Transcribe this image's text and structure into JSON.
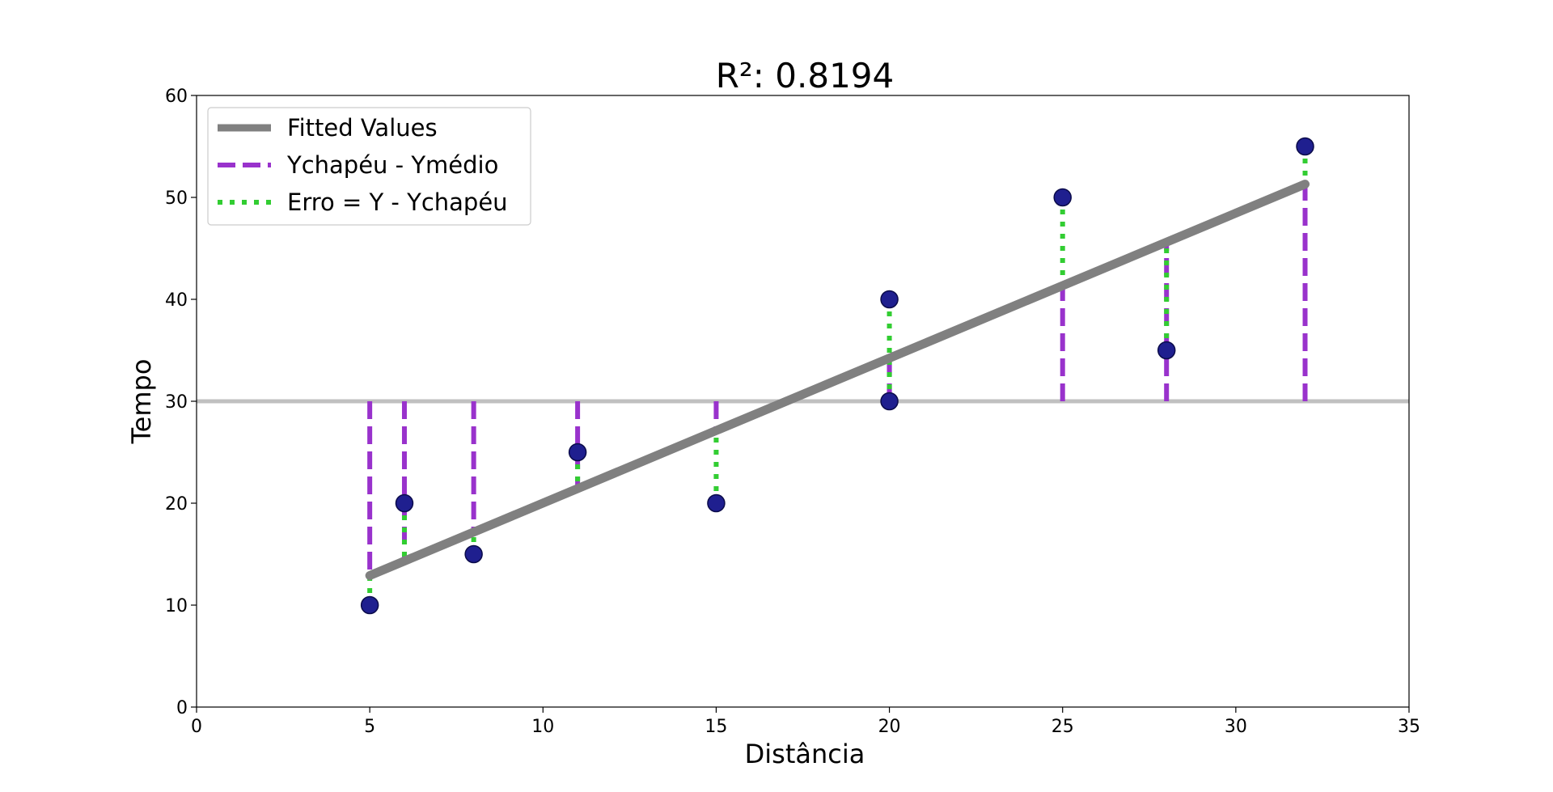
{
  "chart_data": {
    "type": "scatter",
    "title": "R²: 0.8194",
    "xlabel": "Distância",
    "ylabel": "Tempo",
    "xlim": [
      0,
      35
    ],
    "ylim": [
      0,
      60
    ],
    "xticks": [
      0,
      5,
      10,
      15,
      20,
      25,
      30,
      35
    ],
    "yticks": [
      0,
      10,
      20,
      30,
      40,
      50,
      60
    ],
    "grid": false,
    "legend_position": "upper-left",
    "points": {
      "x": [
        5,
        6,
        8,
        11,
        15,
        20,
        20,
        25,
        28,
        32
      ],
      "y": [
        10,
        20,
        15,
        25,
        20,
        40,
        30,
        50,
        35,
        55
      ],
      "color": "#1f1f8f"
    },
    "mean_y": 30,
    "fitted_line": {
      "x": [
        5,
        32
      ],
      "y": [
        12.9,
        51.3
      ]
    },
    "series": [
      {
        "name": "Fitted Values",
        "style": "solid",
        "color": "#808080"
      },
      {
        "name": "Ychapéu - Ymédio",
        "style": "dashed",
        "color": "#9932cc"
      },
      {
        "name": "Erro = Y - Ychapéu",
        "style": "dotted",
        "color": "#32cd32"
      }
    ],
    "mean_line_color": "#c0c0c0"
  }
}
